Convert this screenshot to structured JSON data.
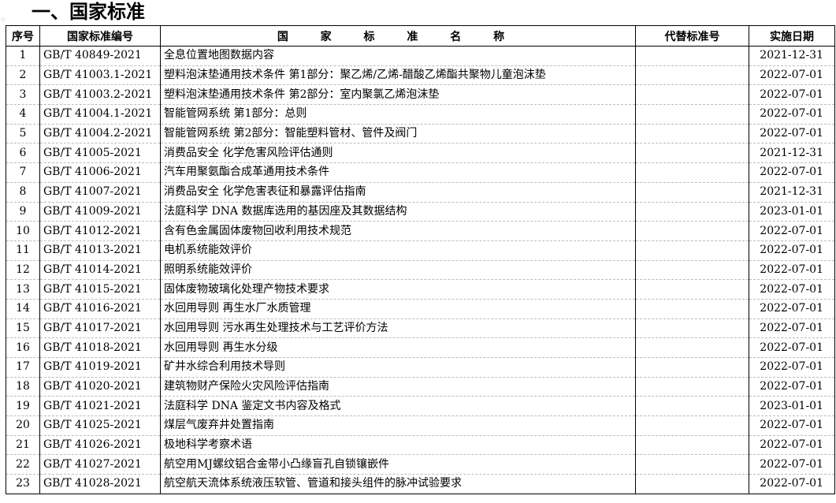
{
  "title": "一、国家标准",
  "headers": [
    "序号",
    "国家标准编号",
    "国 家 标 准 名 称",
    "代替标准号",
    "实施日期"
  ],
  "rows": [
    [
      "1",
      "GB/T 40849-2021",
      "全息位置地图数据内容",
      "",
      "2021-12-31"
    ],
    [
      "2",
      "GB/T 41003.1-2021",
      "塑料泡沫垫通用技术条件 第1部分：聚乙烯/乙烯-醋酸乙烯酯共聚物儿童泡沫垫",
      "",
      "2022-07-01"
    ],
    [
      "3",
      "GB/T 41003.2-2021",
      "塑料泡沫垫通用技术条件 第2部分：室内聚氯乙烯泡沫垫",
      "",
      "2022-07-01"
    ],
    [
      "4",
      "GB/T 41004.1-2021",
      "智能管网系统 第1部分：总则",
      "",
      "2022-07-01"
    ],
    [
      "5",
      "GB/T 41004.2-2021",
      "智能管网系统 第2部分：智能塑料管材、管件及阀门",
      "",
      "2022-07-01"
    ],
    [
      "6",
      "GB/T 41005-2021",
      "消费品安全 化学危害风险评估通则",
      "",
      "2021-12-31"
    ],
    [
      "7",
      "GB/T 41006-2021",
      "汽车用聚氨酯合成革通用技术条件",
      "",
      "2022-07-01"
    ],
    [
      "8",
      "GB/T 41007-2021",
      "消费品安全 化学危害表征和暴露评估指南",
      "",
      "2021-12-31"
    ],
    [
      "9",
      "GB/T 41009-2021",
      "法庭科学 DNA 数据库选用的基因座及其数据结构",
      "",
      "2023-01-01"
    ],
    [
      "10",
      "GB/T 41012-2021",
      "含有色金属固体废物回收利用技术规范",
      "",
      "2022-07-01"
    ],
    [
      "11",
      "GB/T 41013-2021",
      "电机系统能效评价",
      "",
      "2022-07-01"
    ],
    [
      "12",
      "GB/T 41014-2021",
      "照明系统能效评价",
      "",
      "2022-07-01"
    ],
    [
      "13",
      "GB/T 41015-2021",
      "固体废物玻璃化处理产物技术要求",
      "",
      "2022-07-01"
    ],
    [
      "14",
      "GB/T 41016-2021",
      "水回用导则 再生水厂水质管理",
      "",
      "2022-07-01"
    ],
    [
      "15",
      "GB/T 41017-2021",
      "水回用导则 污水再生处理技术与工艺评价方法",
      "",
      "2022-07-01"
    ],
    [
      "16",
      "GB/T 41018-2021",
      "水回用导则 再生水分级",
      "",
      "2022-07-01"
    ],
    [
      "17",
      "GB/T 41019-2021",
      "矿井水综合利用技术导则",
      "",
      "2022-07-01"
    ],
    [
      "18",
      "GB/T 41020-2021",
      "建筑物财产保险火灾风险评估指南",
      "",
      "2022-07-01"
    ],
    [
      "19",
      "GB/T 41021-2021",
      "法庭科学 DNA 鉴定文书内容及格式",
      "",
      "2023-01-01"
    ],
    [
      "20",
      "GB/T 41025-2021",
      "煤层气废弃井处置指南",
      "",
      "2022-07-01"
    ],
    [
      "21",
      "GB/T 41026-2021",
      "极地科学考察术语",
      "",
      "2022-07-01"
    ],
    [
      "22",
      "GB/T 41027-2021",
      "航空用MJ螺纹铝合金带小凸缘盲孔自锁镶嵌件",
      "",
      "2022-07-01"
    ],
    [
      "23",
      "GB/T 41028-2021",
      "航空航天流体系统液压软管、管道和接头组件的脉冲试验要求",
      "",
      "2022-07-01"
    ]
  ]
}
